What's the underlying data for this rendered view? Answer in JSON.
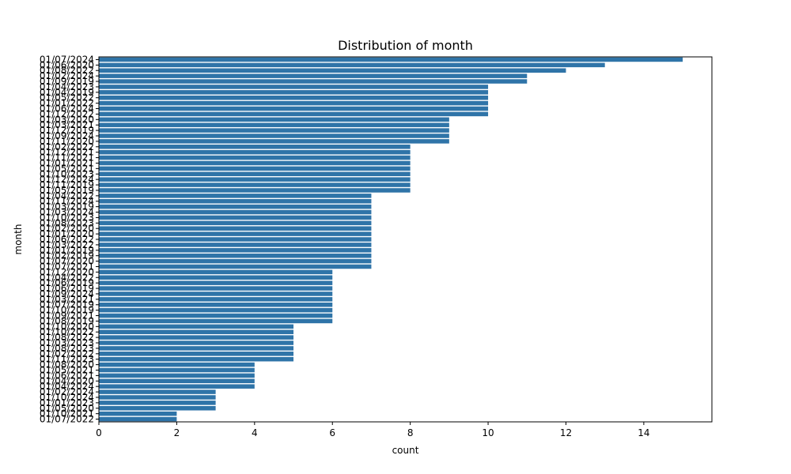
{
  "chart_data": {
    "type": "bar",
    "orientation": "horizontal",
    "title": "Distribution of month",
    "xlabel": "count",
    "ylabel": "month",
    "xlim": [
      0,
      15.75
    ],
    "xticks": [
      0,
      2,
      4,
      6,
      8,
      10,
      12,
      14
    ],
    "bar_color": "#2f74a8",
    "grid": false,
    "categories": [
      "01/07/2024",
      "01/06/2020",
      "01/08/2022",
      "01/02/2024",
      "01/09/2019",
      "01/04/2023",
      "01/04/2019",
      "01/05/2022",
      "01/01/2022",
      "01/06/2024",
      "01/12/2022",
      "01/03/2020",
      "01/03/2021",
      "01/12/2019",
      "01/09/2024",
      "01/11/2020",
      "01/02/2022",
      "01/12/2021",
      "01/11/2021",
      "01/01/2021",
      "01/05/2021",
      "01/10/2023",
      "01/12/2024",
      "01/11/2019",
      "01/05/2019",
      "01/04/2022",
      "01/11/2024",
      "01/03/2019",
      "01/03/2024",
      "01/10/2023",
      "01/08/2023",
      "01/02/2020",
      "01/01/2020",
      "01/06/2022",
      "01/03/2022",
      "01/01/2019",
      "01/02/2019",
      "01/07/2020",
      "01/07/2021",
      "01/12/2020",
      "01/04/2022",
      "01/06/2019",
      "01/06/2019",
      "01/09/2024",
      "01/03/2021",
      "01/07/2019",
      "01/10/2019",
      "01/09/2021",
      "01/08/2019",
      "01/10/2020",
      "01/10/2022",
      "01/08/2022",
      "01/03/2023",
      "01/08/2023",
      "01/02/2022",
      "01/11/2023",
      "01/08/2020",
      "01/05/2021",
      "01/06/2021",
      "01/04/2020",
      "01/04/2024",
      "01/02/2024",
      "01/10/2024",
      "01/01/2023",
      "01/05/2020",
      "01/10/2021",
      "01/07/2022"
    ],
    "values": [
      15,
      13,
      12,
      11,
      11,
      10,
      10,
      10,
      10,
      10,
      10,
      9,
      9,
      9,
      9,
      9,
      8,
      8,
      8,
      8,
      8,
      8,
      8,
      8,
      8,
      7,
      7,
      7,
      7,
      7,
      7,
      7,
      7,
      7,
      7,
      7,
      7,
      7,
      7,
      6,
      6,
      6,
      6,
      6,
      6,
      6,
      6,
      6,
      6,
      5,
      5,
      5,
      5,
      5,
      5,
      5,
      4,
      4,
      4,
      4,
      4,
      3,
      3,
      3,
      3,
      2,
      2
    ]
  }
}
